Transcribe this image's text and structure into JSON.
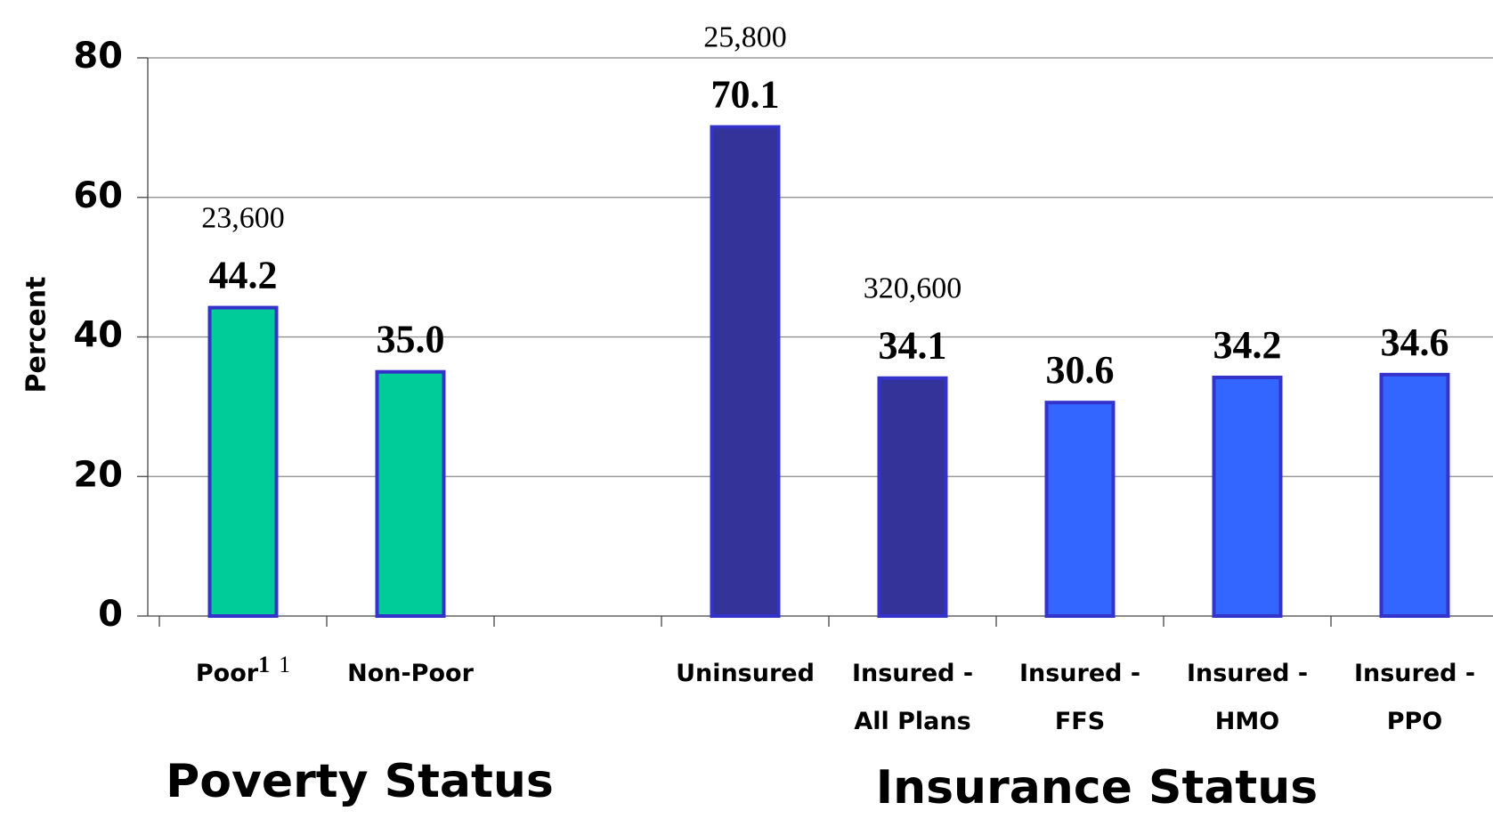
{
  "chart_data": {
    "type": "bar",
    "y_label": "Percent",
    "categories": [
      "Poor",
      "Non-Poor",
      null,
      "Uninsured",
      "Insured - All Plans",
      "Insured - FFS",
      "Insured - HMO",
      "Insured - PPO"
    ],
    "poor_superscripts": [
      "1",
      "1"
    ],
    "values": [
      44.2,
      35.0,
      null,
      70.1,
      34.1,
      30.6,
      34.2,
      34.6
    ],
    "value_labels": [
      "44.2",
      "35.0",
      null,
      "70.1",
      "34.1",
      "30.6",
      "34.2",
      "34.6"
    ],
    "count_labels": [
      "23,600",
      null,
      null,
      "25,800",
      "320,600",
      null,
      null,
      null
    ],
    "colors": [
      "#00cc99",
      "#00cc99",
      null,
      "#333399",
      "#333399",
      "#3366ff",
      "#3366ff",
      "#3366ff"
    ],
    "edge_color": "#3333cc",
    "group_labels": [
      "Poverty Status",
      "Insurance Status"
    ],
    "ylim": [
      0,
      80
    ],
    "yticks": [
      0,
      20,
      40,
      60,
      80
    ],
    "grid": true
  }
}
